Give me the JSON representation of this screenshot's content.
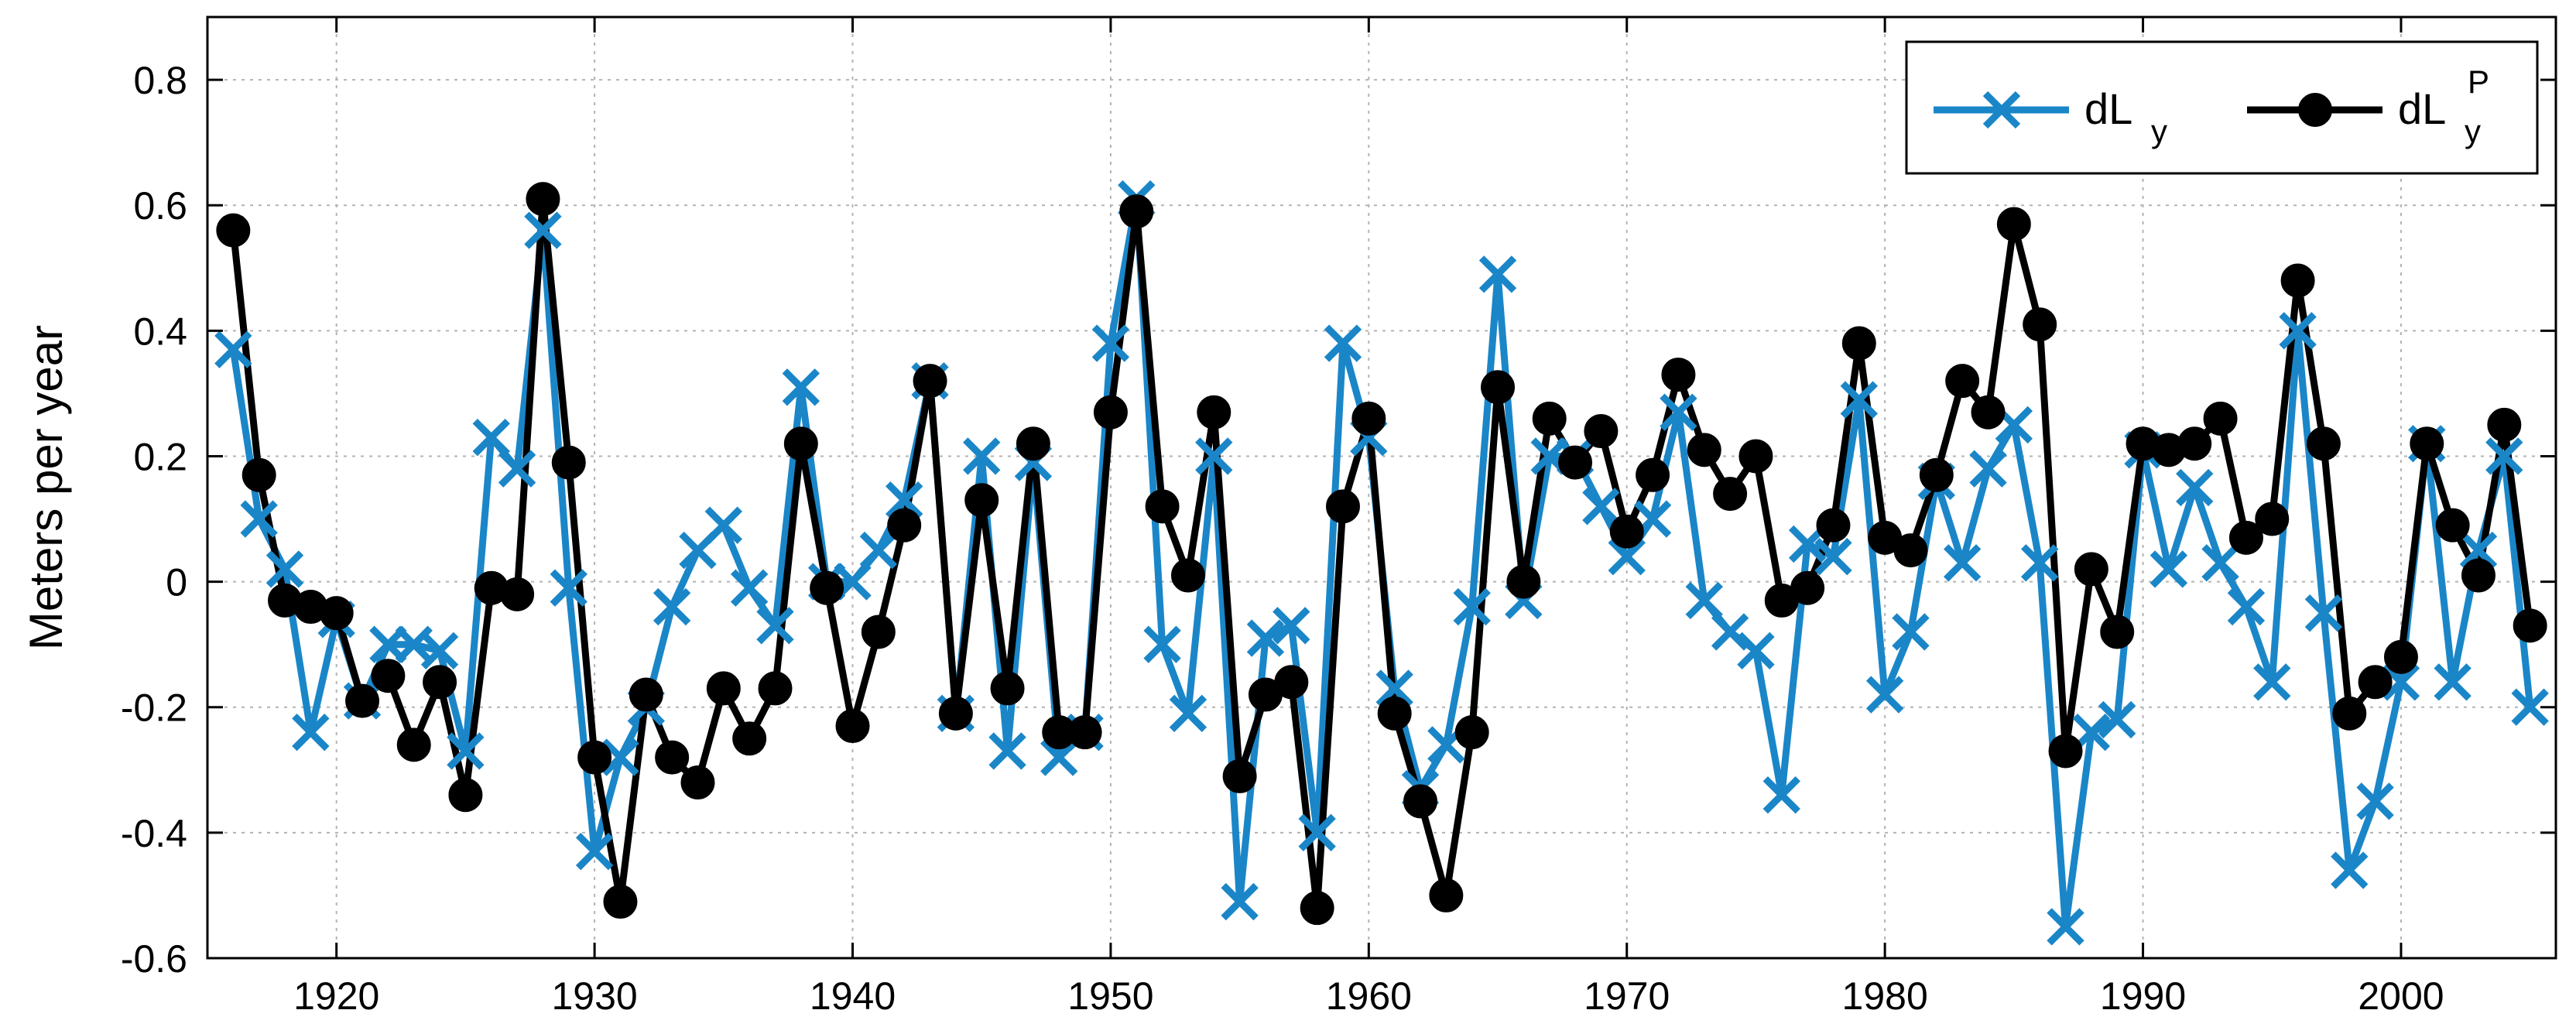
{
  "chart_data": {
    "type": "line",
    "title": "",
    "xlabel": "",
    "ylabel": "Meters per year",
    "xlim": [
      1915,
      2006
    ],
    "ylim": [
      -0.6,
      0.9
    ],
    "xticks": [
      1920,
      1930,
      1940,
      1950,
      1960,
      1970,
      1980,
      1990,
      2000
    ],
    "yticks": [
      -0.6,
      -0.4,
      -0.2,
      0,
      0.2,
      0.4,
      0.6,
      0.8
    ],
    "ytick_labels": [
      "-0.6",
      "-0.4",
      "-0.2",
      "0",
      "0.2",
      "0.4",
      "0.6",
      "0.8"
    ],
    "grid": true,
    "legend_position": "top-right",
    "x": [
      1916,
      1917,
      1918,
      1919,
      1920,
      1921,
      1922,
      1923,
      1924,
      1925,
      1926,
      1927,
      1928,
      1929,
      1930,
      1931,
      1932,
      1933,
      1934,
      1935,
      1936,
      1937,
      1938,
      1939,
      1940,
      1941,
      1942,
      1943,
      1944,
      1945,
      1946,
      1947,
      1948,
      1949,
      1950,
      1951,
      1952,
      1953,
      1954,
      1955,
      1956,
      1957,
      1958,
      1959,
      1960,
      1961,
      1962,
      1963,
      1964,
      1965,
      1966,
      1967,
      1968,
      1969,
      1970,
      1971,
      1972,
      1973,
      1974,
      1975,
      1976,
      1977,
      1978,
      1979,
      1980,
      1981,
      1982,
      1983,
      1984,
      1985,
      1986,
      1987,
      1988,
      1989,
      1990,
      1991,
      1992,
      1993,
      1994,
      1995,
      1996,
      1997,
      1998,
      1999,
      2000,
      2001,
      2002,
      2003,
      2004,
      2005
    ],
    "series": [
      {
        "name": "dL",
        "name_sub": "y",
        "name_sup": "",
        "color": "#1a86c8",
        "marker": "x",
        "values": [
          0.37,
          0.1,
          0.02,
          -0.24,
          -0.06,
          -0.19,
          -0.1,
          -0.1,
          -0.11,
          -0.27,
          0.23,
          0.18,
          0.56,
          -0.01,
          -0.43,
          -0.28,
          -0.2,
          -0.04,
          0.05,
          0.09,
          -0.01,
          -0.07,
          0.31,
          0.0,
          0.0,
          0.05,
          0.13,
          0.32,
          -0.21,
          0.2,
          -0.27,
          0.19,
          -0.28,
          -0.24,
          0.38,
          0.61,
          -0.1,
          -0.21,
          0.2,
          -0.51,
          -0.09,
          -0.07,
          -0.4,
          0.38,
          0.23,
          -0.17,
          -0.33,
          -0.26,
          -0.04,
          0.49,
          -0.03,
          0.2,
          0.2,
          0.12,
          0.04,
          0.1,
          0.27,
          -0.03,
          -0.08,
          -0.11,
          -0.34,
          0.06,
          0.04,
          0.29,
          -0.18,
          -0.08,
          0.16,
          0.03,
          0.18,
          0.25,
          0.03,
          -0.55,
          -0.24,
          -0.22,
          0.21,
          0.02,
          0.15,
          0.03,
          -0.04,
          -0.16,
          0.4,
          -0.05,
          -0.46,
          -0.35,
          -0.16,
          0.22,
          -0.16,
          0.05,
          0.2,
          -0.2
        ]
      },
      {
        "name": "dL",
        "name_sub": "y",
        "name_sup": "P",
        "color": "#000000",
        "marker": "o",
        "values": [
          0.56,
          0.17,
          -0.03,
          -0.04,
          -0.05,
          -0.19,
          -0.15,
          -0.26,
          -0.16,
          -0.34,
          -0.01,
          -0.02,
          0.61,
          0.19,
          -0.28,
          -0.51,
          -0.18,
          -0.28,
          -0.32,
          -0.17,
          -0.25,
          -0.17,
          0.22,
          -0.01,
          -0.23,
          -0.08,
          0.09,
          0.32,
          -0.21,
          0.13,
          -0.17,
          0.22,
          -0.24,
          -0.24,
          0.27,
          0.59,
          0.12,
          0.01,
          0.27,
          -0.31,
          -0.18,
          -0.16,
          -0.52,
          0.12,
          0.26,
          -0.21,
          -0.35,
          -0.5,
          -0.24,
          0.31,
          0.0,
          0.26,
          0.19,
          0.24,
          0.08,
          0.17,
          0.33,
          0.21,
          0.14,
          0.2,
          -0.03,
          -0.01,
          0.09,
          0.38,
          0.07,
          0.05,
          0.17,
          0.32,
          0.27,
          0.57,
          0.41,
          -0.27,
          0.02,
          -0.08,
          0.22,
          0.21,
          0.22,
          0.26,
          0.07,
          0.1,
          0.48,
          0.22,
          -0.21,
          -0.16,
          -0.12,
          0.22,
          0.09,
          0.01,
          0.25,
          -0.07
        ]
      }
    ]
  }
}
